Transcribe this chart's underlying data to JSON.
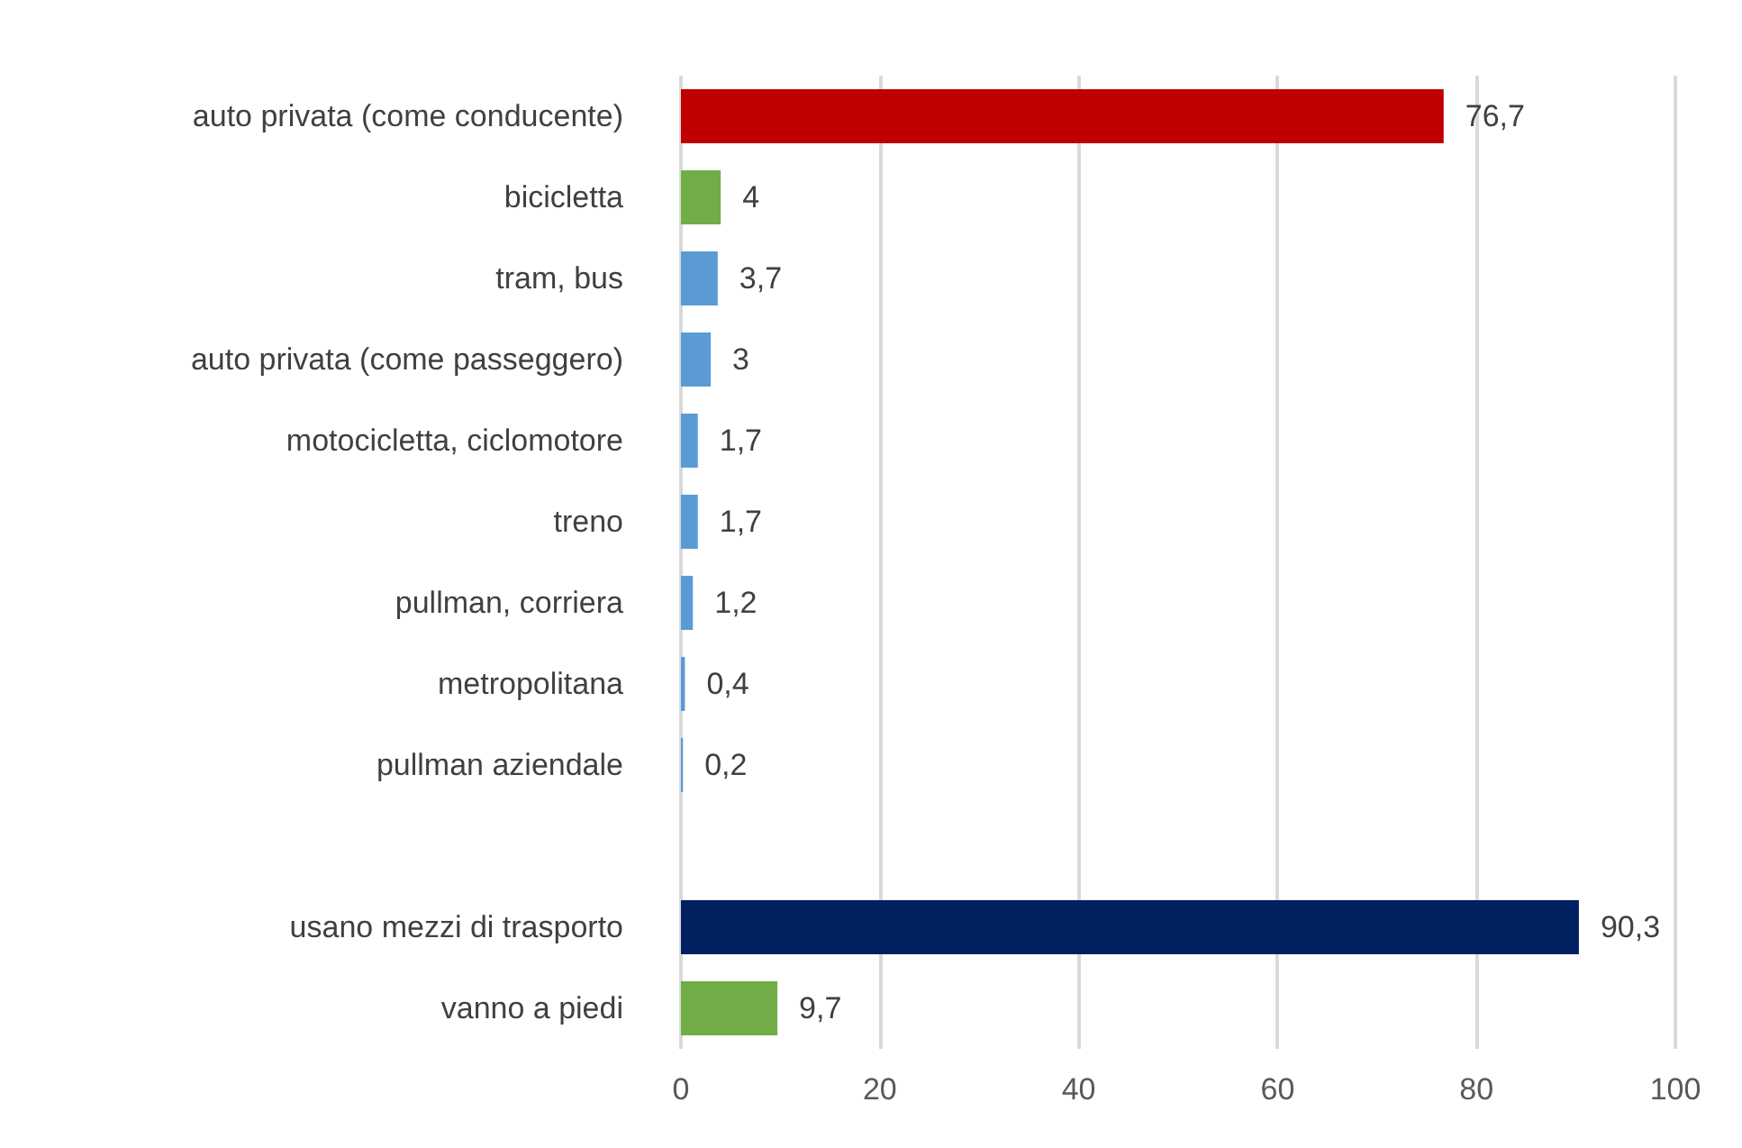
{
  "chart_data": {
    "type": "bar",
    "orientation": "horizontal",
    "categories": [
      "auto privata (come conducente)",
      "bicicletta",
      "tram, bus",
      "auto privata (come passeggero)",
      "motocicletta, ciclomotore",
      "treno",
      "pullman, corriera",
      "metropolitana",
      "pullman aziendale",
      null,
      "usano mezzi di trasporto",
      "vanno a piedi"
    ],
    "values": [
      76.7,
      4,
      3.7,
      3,
      1.7,
      1.7,
      1.2,
      0.4,
      0.2,
      null,
      90.3,
      9.7
    ],
    "colors": [
      "#c00000",
      "#70ad47",
      "#5b9bd5",
      "#5b9bd5",
      "#5b9bd5",
      "#5b9bd5",
      "#5b9bd5",
      "#5b9bd5",
      "#5b9bd5",
      null,
      "#002060",
      "#70ad47"
    ],
    "value_labels": [
      "76,7",
      "4",
      "3,7",
      "3",
      "1,7",
      "1,7",
      "1,2",
      "0,4",
      "0,2",
      null,
      "90,3",
      "9,7"
    ],
    "xlim": [
      0,
      100
    ],
    "xticks": [
      0,
      20,
      40,
      60,
      80,
      100
    ],
    "grid": "x"
  }
}
